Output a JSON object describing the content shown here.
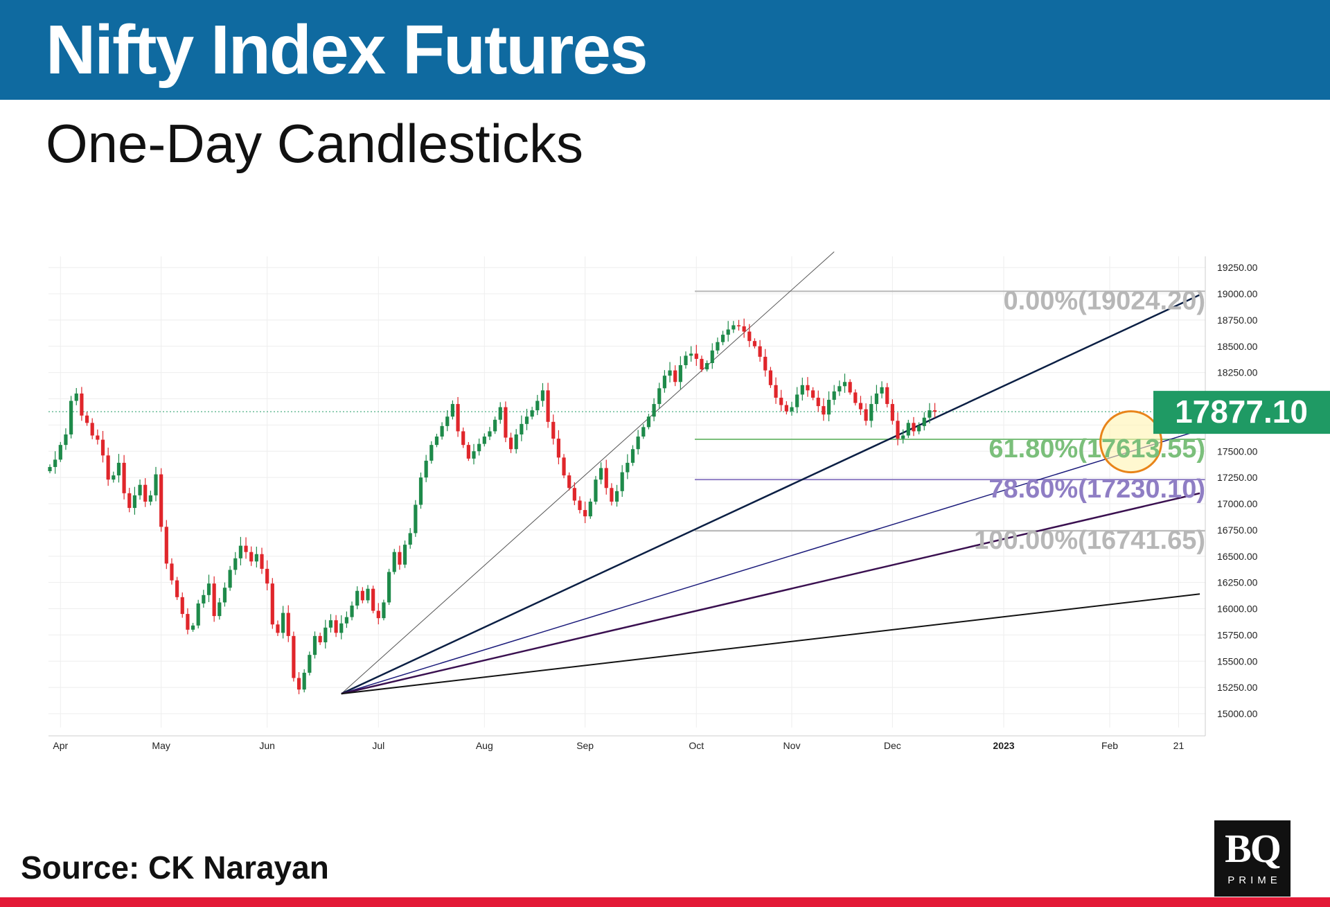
{
  "header": {
    "title": "Nifty Index Futures"
  },
  "subtitle": "One-Day Candlesticks",
  "source": "Source: CK Narayan",
  "logo": {
    "main": "BQ",
    "sub": "PRIME"
  },
  "colors": {
    "band": "#0f6aa0",
    "up": "#1e8a4a",
    "down": "#e0262b",
    "accent_red": "#e31937",
    "last_price_bg": "#1f9a64"
  },
  "chart_data": {
    "type": "candlestick",
    "y_ticks": [
      "19250.00",
      "19000.00",
      "18750.00",
      "18500.00",
      "18250.00",
      "18000.00",
      "17750.00",
      "17500.00",
      "17250.00",
      "17000.00",
      "16750.00",
      "16500.00",
      "16250.00",
      "16000.00",
      "15750.00",
      "15500.00",
      "15250.00",
      "15000.00"
    ],
    "ylim": [
      14850,
      19400
    ],
    "x_ticks": [
      {
        "label": "Apr",
        "index": 2
      },
      {
        "label": "May",
        "index": 21
      },
      {
        "label": "Jun",
        "index": 41
      },
      {
        "label": "Jul",
        "index": 62
      },
      {
        "label": "Aug",
        "index": 82
      },
      {
        "label": "Sep",
        "index": 101
      },
      {
        "label": "Oct",
        "index": 122
      },
      {
        "label": "Nov",
        "index": 140
      },
      {
        "label": "Dec",
        "index": 159
      },
      {
        "label": "2023",
        "index": 180
      },
      {
        "label": "Feb",
        "index": 200
      },
      {
        "label": "21",
        "index": 213
      }
    ],
    "last_price": {
      "label": "17877.10",
      "value": 17877.1
    },
    "fib_levels": [
      {
        "label": "0.00%(19024.20)",
        "value": 19024.2,
        "color": "#b7b7b7"
      },
      {
        "label": "61.80%(17613.55)",
        "value": 17613.55,
        "color": "#7bbf7b"
      },
      {
        "label": "78.60%(17230.10)",
        "value": 17230.1,
        "color": "#8f7ec4"
      },
      {
        "label": "100.00%(16741.65)",
        "value": 16741.65,
        "color": "#b7b7b7"
      }
    ],
    "fan_anchor": {
      "index": 55,
      "value": 15190
    },
    "fan_lines": [
      {
        "end_index": 148,
        "end_value": 19400,
        "color": "#555555",
        "width": 1
      },
      {
        "end_index": 217,
        "end_value": 18990,
        "color": "#0b1f44",
        "width": 2.5
      },
      {
        "end_index": 217,
        "end_value": 17700,
        "color": "#1a1a7a",
        "width": 1.5
      },
      {
        "end_index": 217,
        "end_value": 17100,
        "color": "#3a1050",
        "width": 2.5
      },
      {
        "end_index": 217,
        "end_value": 16140,
        "color": "#111111",
        "width": 2
      }
    ],
    "highlight": {
      "index": 204,
      "value": 17590,
      "radius_px": 44
    },
    "closes": [
      17350,
      17420,
      17560,
      17660,
      17980,
      18050,
      17840,
      17770,
      17650,
      17610,
      17460,
      17230,
      17270,
      17390,
      17100,
      16960,
      17080,
      17180,
      17020,
      17080,
      17280,
      16780,
      16430,
      16270,
      16110,
      15950,
      15800,
      15840,
      16050,
      16130,
      16240,
      15930,
      16060,
      16200,
      16370,
      16480,
      16600,
      16540,
      16450,
      16520,
      16380,
      16240,
      15850,
      15770,
      15960,
      15740,
      15340,
      15230,
      15390,
      15560,
      15740,
      15680,
      15820,
      15890,
      15770,
      15860,
      15920,
      16030,
      16170,
      16080,
      16190,
      15980,
      15910,
      16060,
      16350,
      16540,
      16420,
      16610,
      16720,
      16990,
      17250,
      17410,
      17560,
      17640,
      17740,
      17830,
      17950,
      17690,
      17560,
      17430,
      17500,
      17570,
      17640,
      17690,
      17800,
      17920,
      17630,
      17520,
      17660,
      17760,
      17830,
      17890,
      17980,
      18080,
      17780,
      17620,
      17440,
      17270,
      17150,
      17030,
      16940,
      16880,
      17020,
      17230,
      17340,
      17150,
      17020,
      17120,
      17300,
      17390,
      17520,
      17640,
      17730,
      17830,
      17950,
      18100,
      18220,
      18270,
      18160,
      18320,
      18410,
      18430,
      18380,
      18280,
      18340,
      18460,
      18540,
      18610,
      18660,
      18700,
      18690,
      18640,
      18550,
      18500,
      18400,
      18270,
      18130,
      18010,
      17940,
      17880,
      17920,
      18040,
      18130,
      18080,
      18010,
      17930,
      17850,
      17990,
      18070,
      18120,
      18160,
      18060,
      17960,
      17900,
      17790,
      17950,
      18050,
      18110,
      17950,
      17790,
      17620,
      17650,
      17770,
      17690,
      17740,
      17820,
      17890,
      17877
    ]
  }
}
